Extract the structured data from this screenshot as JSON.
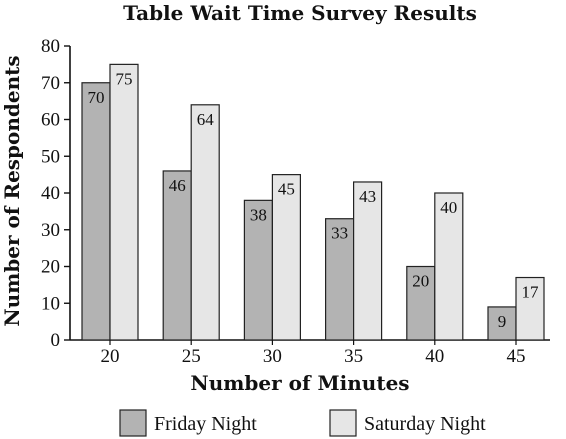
{
  "chart_data": {
    "type": "bar",
    "title": "Table Wait Time Survey Results",
    "xlabel": "Number of Minutes",
    "ylabel": "Number of Respondents",
    "categories": [
      "20",
      "25",
      "30",
      "35",
      "40",
      "45"
    ],
    "series": [
      {
        "name": "Friday Night",
        "values": [
          70,
          46,
          38,
          33,
          20,
          9
        ],
        "color": "#b3b3b3"
      },
      {
        "name": "Saturday Night",
        "values": [
          75,
          64,
          45,
          43,
          40,
          17
        ],
        "color": "#e6e6e6"
      }
    ],
    "ylim": [
      0,
      80
    ],
    "yticks": [
      0,
      10,
      20,
      30,
      40,
      50,
      60,
      70,
      80
    ],
    "grid": false,
    "legend_position": "bottom"
  }
}
